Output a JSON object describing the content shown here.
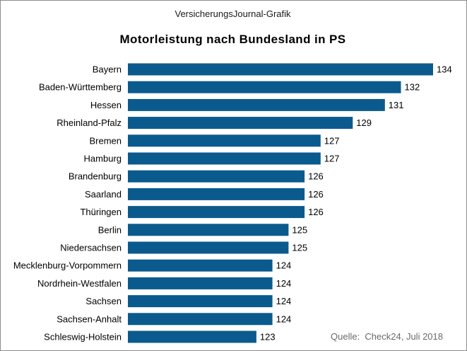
{
  "header": {
    "label": "VersicherungsJournal-Grafik",
    "source": "Quelle:  Check24, Juli 2018"
  },
  "colors": {
    "bar": "#0b5a8e",
    "text": "#000000",
    "frame": "#8c8c8c"
  },
  "chart_data": {
    "type": "bar",
    "orientation": "horizontal",
    "title": "Motorleistung nach Bundesland  in PS",
    "xlabel": "",
    "ylabel": "",
    "xlim": [
      115,
      134
    ],
    "grid": false,
    "legend": "none",
    "categories": [
      "Bayern",
      "Baden-Württemberg",
      "Hessen",
      "Rheinland-Pfalz",
      "Bremen",
      "Hamburg",
      "Brandenburg",
      "Saarland",
      "Thüringen",
      "Berlin",
      "Niedersachsen",
      "Mecklenburg-Vorpommern",
      "Nordrhein-Westfalen",
      "Sachsen",
      "Sachsen-Anhalt",
      "Schleswig-Holstein"
    ],
    "values": [
      134,
      132,
      131,
      129,
      127,
      127,
      126,
      126,
      126,
      125,
      125,
      124,
      124,
      124,
      124,
      123
    ]
  }
}
